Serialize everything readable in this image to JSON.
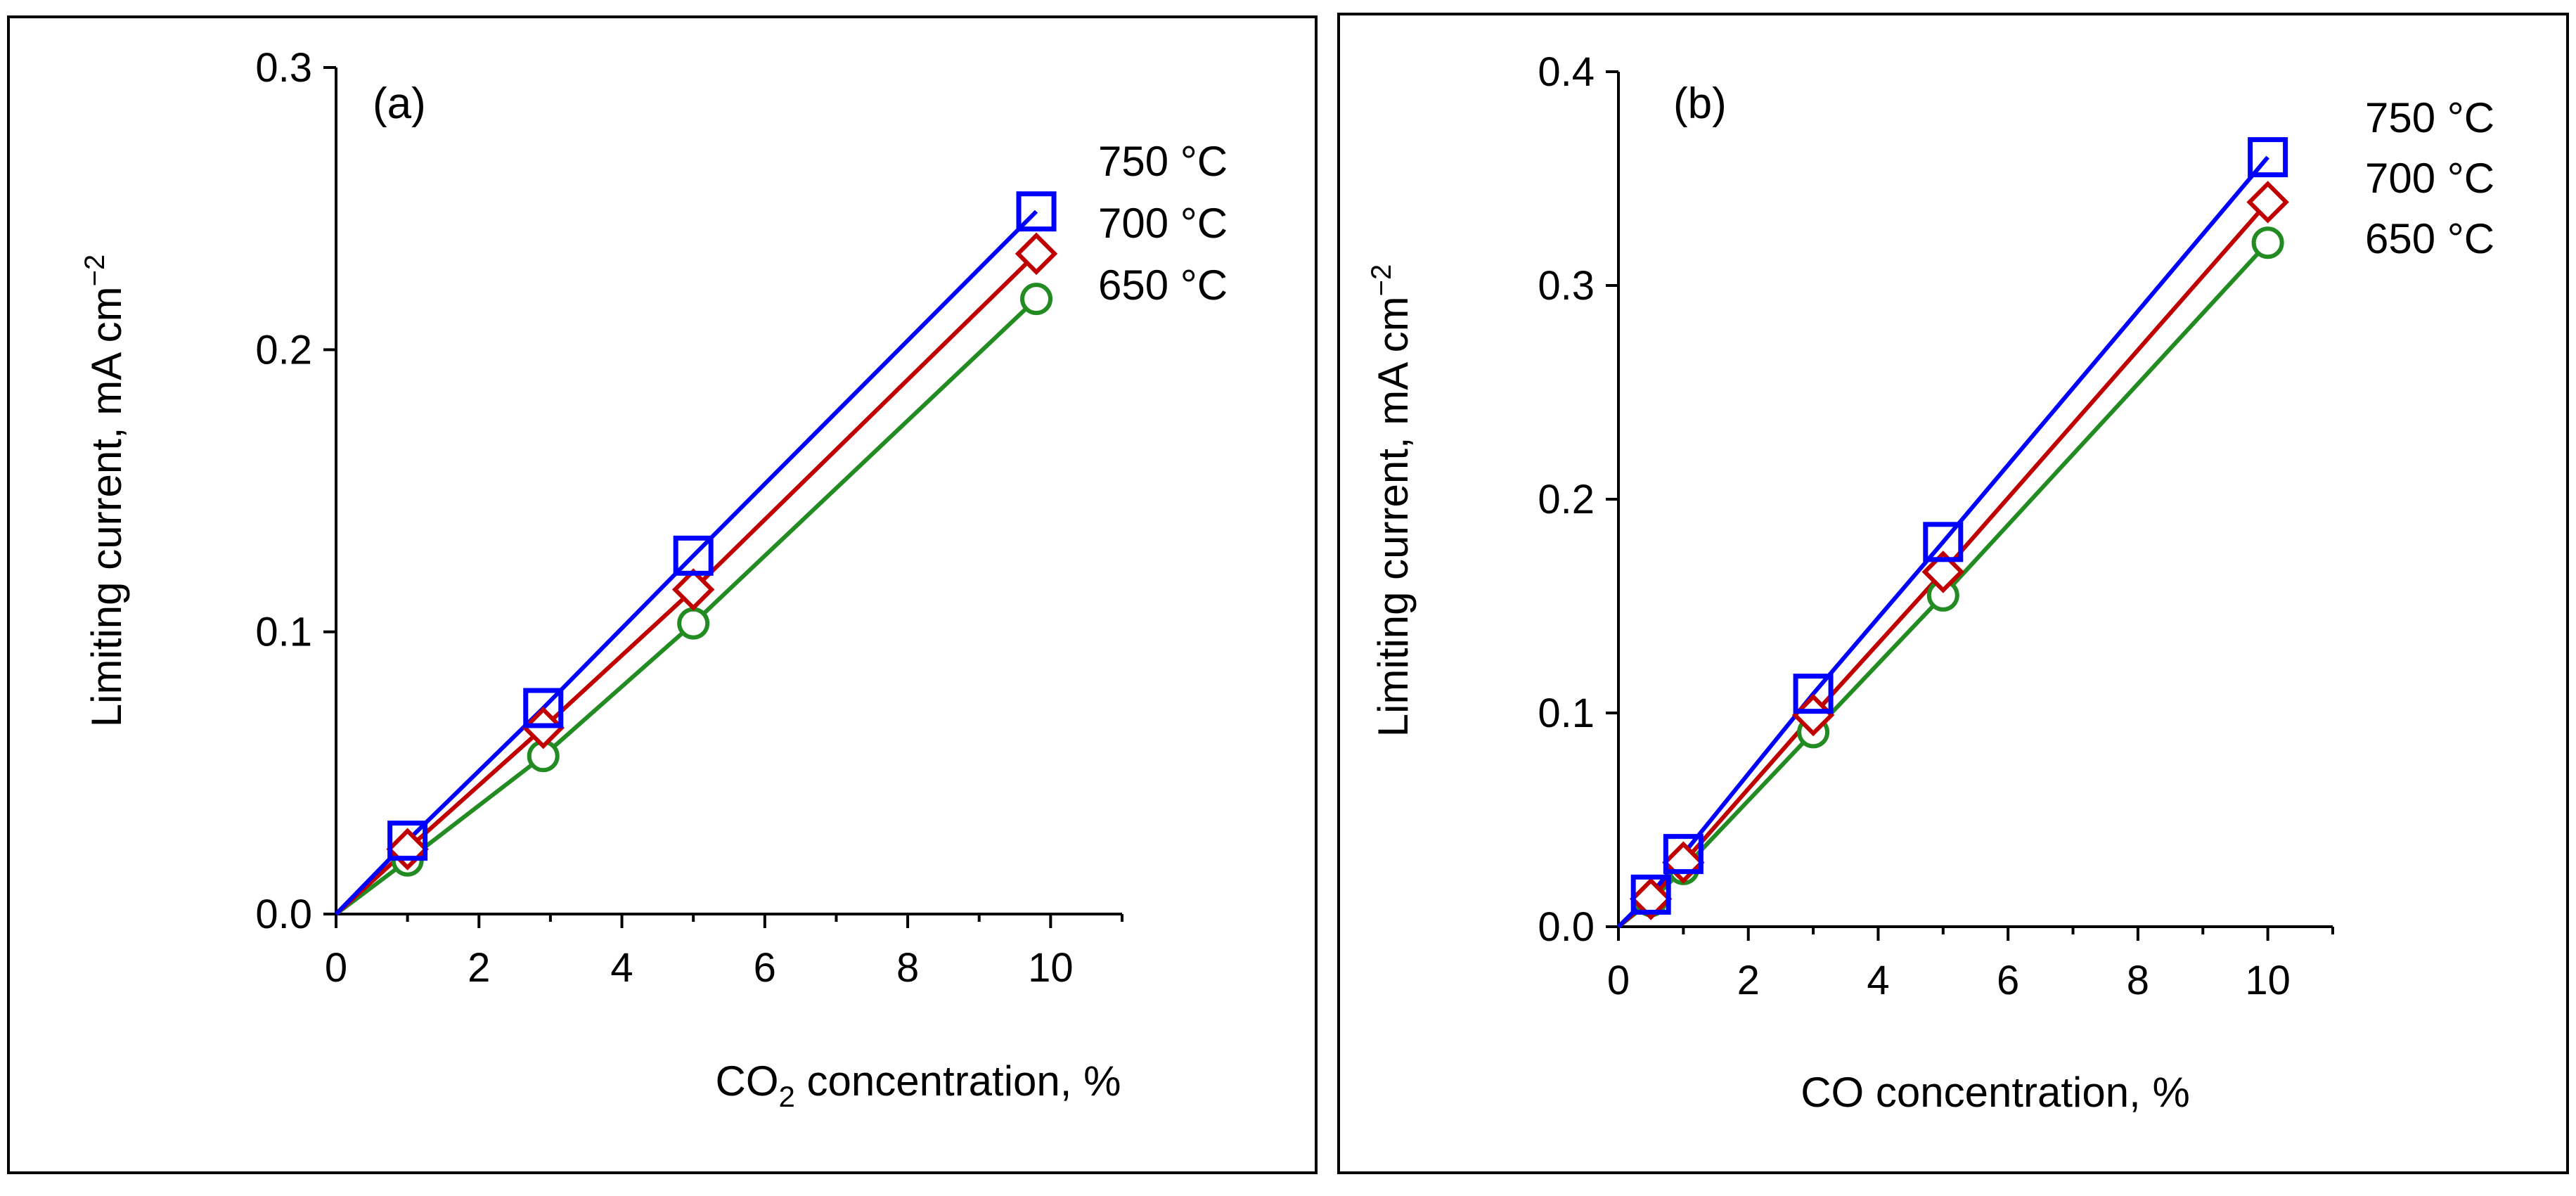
{
  "chart_data": [
    {
      "type": "line",
      "panel_label": "(a)",
      "xlabel_main": "CO",
      "xlabel_sub": "2",
      "xlabel_rest": " concentration, %",
      "ylabel_main": "Limiting current, mA cm",
      "ylabel_sup": "−2",
      "xlim": [
        0,
        11
      ],
      "ylim": [
        0,
        0.3
      ],
      "xticks": [
        "0",
        "2",
        "4",
        "6",
        "8",
        "10"
      ],
      "yticks": [
        "0.0",
        "0.1",
        "0.2",
        "0.3"
      ],
      "series": [
        {
          "name": "650 °C",
          "color": "#228b22",
          "marker": "circle",
          "x": [
            1,
            2.9,
            5,
            9.8
          ],
          "values": [
            0.019,
            0.056,
            0.103,
            0.218
          ]
        },
        {
          "name": "700 °C",
          "color": "#c00000",
          "marker": "diamond",
          "x": [
            1,
            2.9,
            5,
            9.8
          ],
          "values": [
            0.023,
            0.066,
            0.115,
            0.234
          ]
        },
        {
          "name": "750 °C",
          "color": "#0000ff",
          "marker": "square",
          "x": [
            1,
            2.9,
            5,
            9.8
          ],
          "values": [
            0.026,
            0.073,
            0.127,
            0.249
          ]
        }
      ],
      "legend_order": [
        "750 °C",
        "700 °C",
        "650 °C"
      ]
    },
    {
      "type": "line",
      "panel_label": "(b)",
      "xlabel_main": "CO concentration, %",
      "xlabel_sub": "",
      "xlabel_rest": "",
      "ylabel_main": "Limiting current, mA cm",
      "ylabel_sup": "−2",
      "xlim": [
        0,
        11
      ],
      "ylim": [
        0,
        0.4
      ],
      "xticks": [
        "0",
        "2",
        "4",
        "6",
        "8",
        "10"
      ],
      "yticks": [
        "0.0",
        "0.1",
        "0.2",
        "0.3",
        "0.4"
      ],
      "series": [
        {
          "name": "650 °C",
          "color": "#228b22",
          "marker": "circle",
          "x": [
            0.5,
            1,
            3,
            5,
            10
          ],
          "values": [
            0.012,
            0.027,
            0.091,
            0.155,
            0.32
          ]
        },
        {
          "name": "700 °C",
          "color": "#c00000",
          "marker": "diamond",
          "x": [
            0.5,
            1,
            3,
            5,
            10
          ],
          "values": [
            0.013,
            0.03,
            0.099,
            0.166,
            0.339
          ]
        },
        {
          "name": "750 °C",
          "color": "#0000ff",
          "marker": "square",
          "x": [
            0.5,
            1,
            3,
            5,
            10
          ],
          "values": [
            0.015,
            0.034,
            0.109,
            0.18,
            0.36
          ]
        }
      ],
      "legend_order": [
        "750 °C",
        "700 °C",
        "650 °C"
      ]
    }
  ]
}
